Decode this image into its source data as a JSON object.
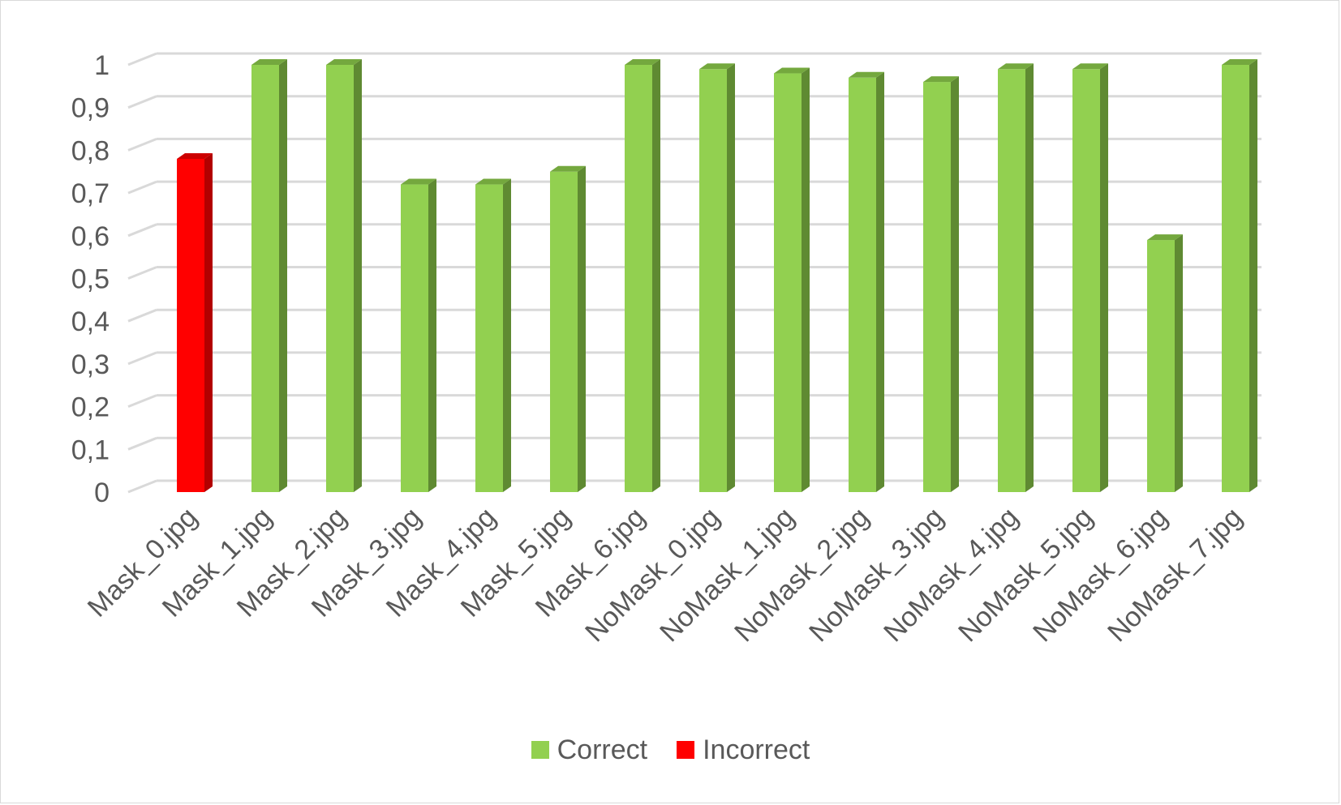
{
  "chart_data": {
    "type": "bar",
    "title": "",
    "xlabel": "",
    "ylabel": "",
    "ylim": [
      0,
      1
    ],
    "yticks": [
      "0",
      "0,1",
      "0,2",
      "0,3",
      "0,4",
      "0,5",
      "0,6",
      "0,7",
      "0,8",
      "0,9",
      "1"
    ],
    "categories": [
      "Mask_0.jpg",
      "Mask_1.jpg",
      "Mask_2.jpg",
      "Mask_3.jpg",
      "Mask_4.jpg",
      "Mask_5.jpg",
      "Mask_6.jpg",
      "NoMask_0.jpg",
      "NoMask_1.jpg",
      "NoMask_2.jpg",
      "NoMask_3.jpg",
      "NoMask_4.jpg",
      "NoMask_5.jpg",
      "NoMask_6.jpg",
      "NoMask_7.jpg"
    ],
    "values": [
      0.78,
      1.0,
      1.0,
      0.72,
      0.72,
      0.75,
      1.0,
      0.99,
      0.98,
      0.97,
      0.96,
      0.99,
      0.99,
      0.59,
      1.0
    ],
    "series": [
      {
        "name": "Correct",
        "color": "#92d050",
        "side_color": "#5f8a32",
        "top_color": "#74a83e",
        "values": [
          null,
          1.0,
          1.0,
          0.72,
          0.72,
          0.75,
          1.0,
          0.99,
          0.98,
          0.97,
          0.96,
          0.99,
          0.99,
          0.59,
          1.0
        ]
      },
      {
        "name": "Incorrect",
        "color": "#ff0000",
        "side_color": "#b20000",
        "top_color": "#cc0000",
        "values": [
          0.78,
          null,
          null,
          null,
          null,
          null,
          null,
          null,
          null,
          null,
          null,
          null,
          null,
          null,
          null
        ]
      }
    ],
    "grid": true,
    "three_d": true,
    "legend_position": "bottom"
  },
  "legend": [
    {
      "label": "Correct",
      "color": "#92d050"
    },
    {
      "label": "Incorrect",
      "color": "#ff0000"
    }
  ]
}
